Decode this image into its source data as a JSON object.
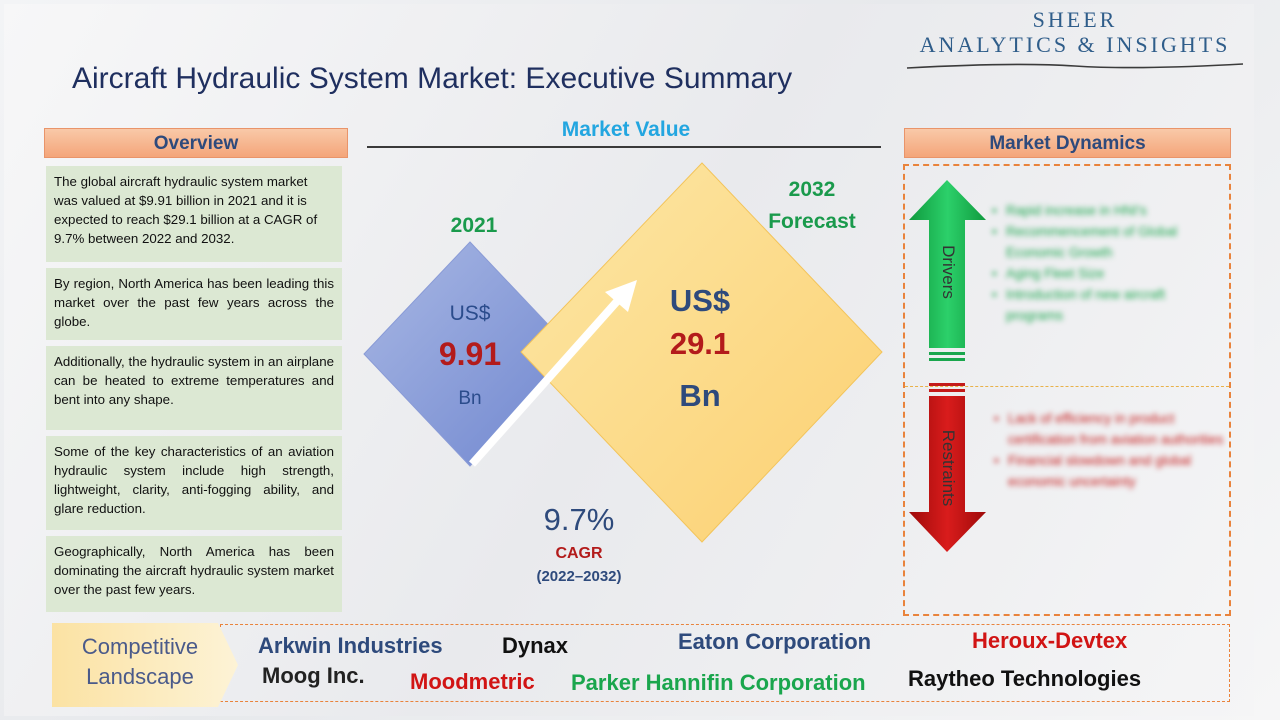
{
  "logo": {
    "line1": "SHEER",
    "line2": "ANALYTICS & INSIGHTS"
  },
  "title": "Aircraft Hydraulic System Market: Executive Summary",
  "overview": {
    "header": "Overview",
    "paragraphs": [
      "The global aircraft hydraulic system market was valued at $9.91 billion in 2021 and it is expected to reach $29.1 billion at a CAGR of 9.7% between 2022 and 2032.",
      "By region, North America has been leading this market over the past few years across the globe.",
      "Additionally, the hydraulic system in an airplane can be heated to extreme temperatures and bent into any shape.",
      "Some of the key characteristics of an aviation hydraulic system include high strength, lightweight, clarity, anti-fogging ability, and glare reduction.",
      "Geographically, North America has been dominating the aircraft hydraulic system market over the past few years."
    ]
  },
  "market_value": {
    "header": "Market Value",
    "y2021": {
      "label": "2021",
      "currency": "US$",
      "value": "9.91",
      "unit": "Bn"
    },
    "y2032": {
      "label": "2032 Forecast",
      "currency": "US$",
      "value": "29.1",
      "unit": "Bn"
    },
    "cagr": {
      "value": "9.7%",
      "label": "CAGR",
      "range": "(2022–2032)"
    }
  },
  "dynamics": {
    "header": "Market Dynamics",
    "drivers_label": "Drivers",
    "restraints_label": "Restraints",
    "drivers": [
      "Rapid increase in HNI's",
      "Recommencement of Global Economic Growth",
      "Aging Fleet Size",
      "Introduction of new aircraft programs"
    ],
    "restraints": [
      "Lack of efficiency in product certification from aviation authorities",
      "Financial slowdown and global economic uncertainty"
    ]
  },
  "competitive": {
    "label": "Competitive Landscape",
    "companies": [
      {
        "name": "Arkwin Industries",
        "color": "#2e4a7c"
      },
      {
        "name": "Dynax",
        "color": "#111111"
      },
      {
        "name": "Eaton Corporation",
        "color": "#2e4a7c"
      },
      {
        "name": "Heroux-Devtex",
        "color": "#d11414"
      },
      {
        "name": "Moog Inc.",
        "color": "#222222"
      },
      {
        "name": "Moodmetric",
        "color": "#d11414"
      },
      {
        "name": "Parker Hannifin Corporation",
        "color": "#1aa64d"
      },
      {
        "name": "Raytheo Technologies",
        "color": "#111111"
      }
    ]
  },
  "colors": {
    "accent_green": "#1a9a4c",
    "accent_red": "#b31b1b",
    "accent_blue": "#2e4a7c",
    "header_orange": "#f4a57a"
  }
}
